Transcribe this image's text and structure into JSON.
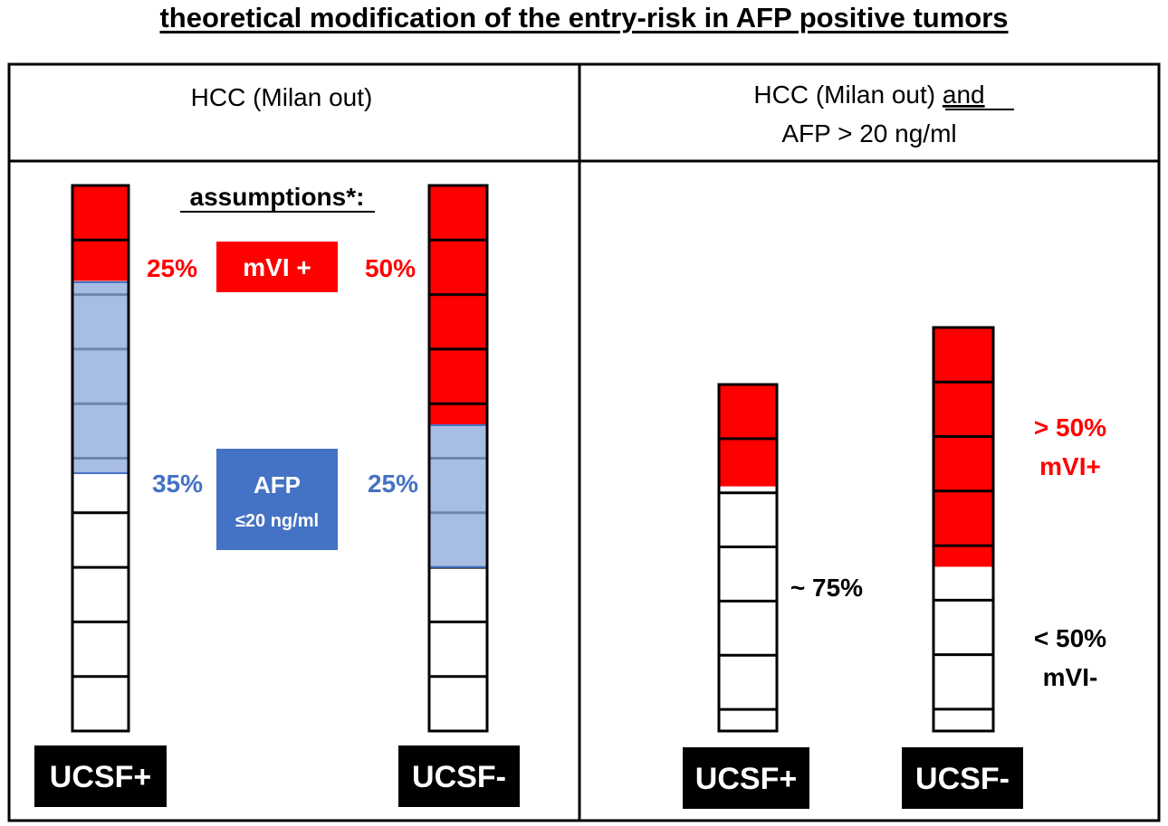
{
  "title": "theoretical modification of the entry-risk in AFP positive tumors",
  "colors": {
    "red": "#ff0000",
    "blue_box": "#4472c4",
    "blue_overlay": "#8eaadb",
    "blue_text": "#4472c4",
    "black": "#000000"
  },
  "left_panel": {
    "header": "HCC (Milan out)",
    "assumptions_label": "assumptions*:",
    "mvi_box_label": "mVI +",
    "afp_box_line1": "AFP",
    "afp_box_line2": "≤20 ng/ml",
    "bars": [
      {
        "label": "UCSF+",
        "mvi_pct_label": "25%",
        "afp_pct_label": "35%",
        "mvi_fraction": 0.25,
        "afp_fraction": 0.35
      },
      {
        "label": "UCSF-",
        "mvi_pct_label": "50%",
        "afp_pct_label": "25%",
        "mvi_fraction": 0.5,
        "afp_fraction": 0.25
      }
    ]
  },
  "right_panel": {
    "header_line1": "HCC (Milan out)",
    "header_and": "and",
    "header_line2": "AFP > 20 ng/ml",
    "bars": [
      {
        "label": "UCSF+",
        "annotation": "~ 75%",
        "red_fraction": 0.294
      },
      {
        "label": "UCSF-",
        "annotation_top_line1": "> 50%",
        "annotation_top_line2": "mVI+",
        "annotation_bottom_line1": "< 50%",
        "annotation_bottom_line2": "mVI-",
        "red_fraction": 0.593
      }
    ]
  }
}
